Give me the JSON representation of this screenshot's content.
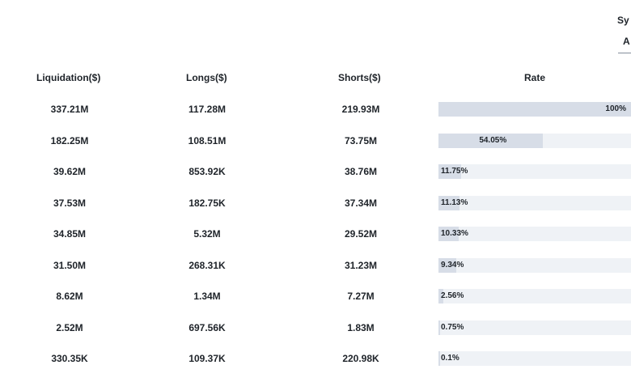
{
  "symbol_header": "Sy",
  "symbol_tab": "A",
  "columns": {
    "liquidation": "Liquidation($)",
    "longs": "Longs($)",
    "shorts": "Shorts($)",
    "rate": "Rate"
  },
  "rows": [
    {
      "liquidation": "337.21M",
      "longs": "117.28M",
      "shorts": "219.93M",
      "rate_label": "100%",
      "rate": 100
    },
    {
      "liquidation": "182.25M",
      "longs": "108.51M",
      "shorts": "73.75M",
      "rate_label": "54.05%",
      "rate": 54.05
    },
    {
      "liquidation": "39.62M",
      "longs": "853.92K",
      "shorts": "38.76M",
      "rate_label": "11.75%",
      "rate": 11.75
    },
    {
      "liquidation": "37.53M",
      "longs": "182.75K",
      "shorts": "37.34M",
      "rate_label": "11.13%",
      "rate": 11.13
    },
    {
      "liquidation": "34.85M",
      "longs": "5.32M",
      "shorts": "29.52M",
      "rate_label": "10.33%",
      "rate": 10.33
    },
    {
      "liquidation": "31.50M",
      "longs": "268.31K",
      "shorts": "31.23M",
      "rate_label": "9.34%",
      "rate": 9.34
    },
    {
      "liquidation": "8.62M",
      "longs": "1.34M",
      "shorts": "7.27M",
      "rate_label": "2.56%",
      "rate": 2.56
    },
    {
      "liquidation": "2.52M",
      "longs": "697.56K",
      "shorts": "1.83M",
      "rate_label": "0.75%",
      "rate": 0.75
    },
    {
      "liquidation": "330.35K",
      "longs": "109.37K",
      "shorts": "220.98K",
      "rate_label": "0.1%",
      "rate": 0.1
    }
  ],
  "colors": {
    "bar_track": "#eff2f6",
    "bar_fill": "#d7dde7",
    "text": "#1e2329"
  }
}
